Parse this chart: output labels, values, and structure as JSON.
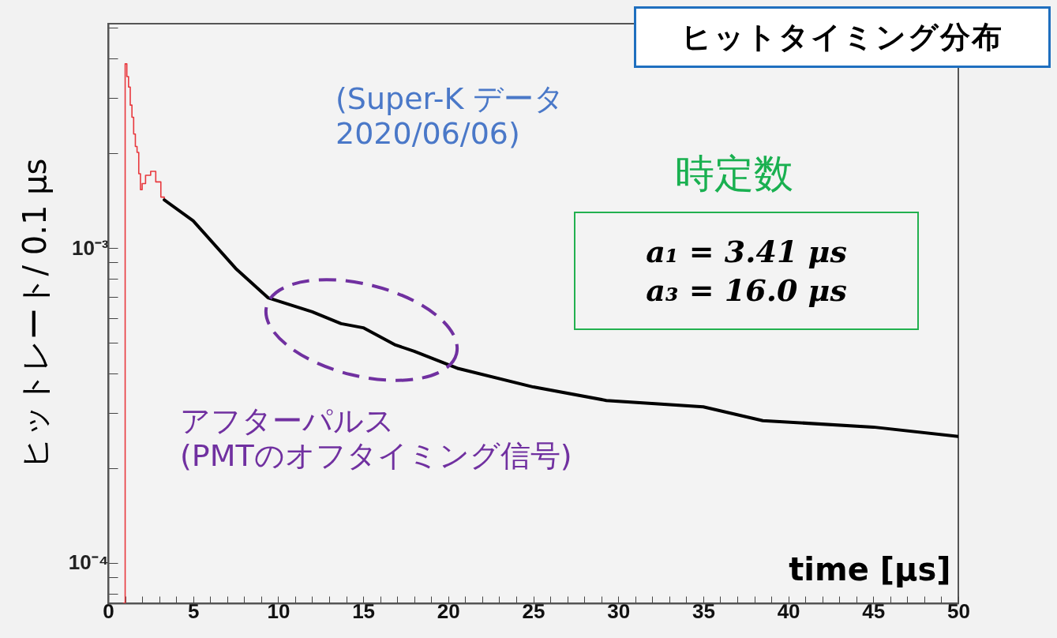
{
  "chart_data": {
    "type": "line",
    "title": "ヒットタイミング分布",
    "xlabel": "time [μs]",
    "ylabel": "ヒットレート/ 0.1 μs",
    "annotations": [
      "(Super-K データ\n2020/06/06)",
      "時定数",
      "a₁ = 3.41 μs",
      "a₃ = 16.0 μs",
      "アフターパルス\n(PMTのオフタイミング信号)"
    ],
    "log": true,
    "xlim": [
      0,
      50
    ],
    "xticks": [
      0,
      {
        "value": 1,
        "label": null
      },
      {
        "value": 2,
        "label": null
      },
      {
        "value": 3,
        "label": null
      },
      {
        "value": 4,
        "label": null
      },
      5,
      {
        "value": 6,
        "label": null
      },
      {
        "value": 7,
        "label": null
      },
      {
        "value": 8,
        "label": null
      },
      {
        "value": 9,
        "label": null
      },
      10,
      {
        "value": 11,
        "label": null
      },
      {
        "value": 12,
        "label": null
      },
      {
        "value": 13,
        "label": null
      },
      {
        "value": 14,
        "label": null
      },
      15,
      {
        "value": 16,
        "label": null
      },
      {
        "value": 17,
        "label": null
      },
      {
        "value": 18,
        "label": null
      },
      {
        "value": 19,
        "label": null
      },
      20,
      {
        "value": 21,
        "label": null
      },
      {
        "value": 22,
        "label": null
      },
      {
        "value": 23,
        "label": null
      },
      {
        "value": 24,
        "label": null
      },
      25,
      {
        "value": 26,
        "label": null
      },
      {
        "value": 27,
        "label": null
      },
      {
        "value": 28,
        "label": null
      },
      {
        "value": 29,
        "label": null
      },
      30,
      {
        "value": 31,
        "label": null
      },
      {
        "value": 32,
        "label": null
      },
      {
        "value": 33,
        "label": null
      },
      {
        "value": 34,
        "label": null
      },
      35,
      {
        "value": 36,
        "label": null
      },
      {
        "value": 37,
        "label": null
      },
      {
        "value": 38,
        "label": null
      },
      {
        "value": 39,
        "label": null
      },
      40,
      {
        "value": 41,
        "label": null
      },
      {
        "value": 42,
        "label": null
      },
      {
        "value": 43,
        "label": null
      },
      {
        "value": 44,
        "label": null
      },
      45,
      {
        "value": 46,
        "label": null
      },
      {
        "value": 47,
        "label": null
      },
      {
        "value": 48,
        "label": null
      },
      {
        "value": 49,
        "label": null
      },
      50
    ],
    "ylim": [
      7.45e-05,
      0.00515
    ],
    "yticks": [
      {
        "value": 8e-05,
        "label": null
      },
      {
        "value": 9e-05,
        "label": null
      },
      {
        "value": 0.0001,
        "label": "10⁻⁴"
      },
      {
        "value": 0.0002,
        "label": null
      },
      {
        "value": 0.0003,
        "label": null
      },
      {
        "value": 0.0004,
        "label": null
      },
      {
        "value": 0.0005,
        "label": null
      },
      {
        "value": 0.0006,
        "label": null
      },
      {
        "value": 0.0007,
        "label": null
      },
      {
        "value": 0.0008,
        "label": null
      },
      {
        "value": 0.0009,
        "label": null
      },
      {
        "value": 0.001,
        "label": "10⁻³"
      },
      {
        "value": 0.002,
        "label": null
      },
      {
        "value": 0.003,
        "label": null
      },
      {
        "value": 0.004,
        "label": null
      },
      {
        "value": 0.005,
        "label": null
      }
    ],
    "series": [
      {
        "type": "step",
        "color": "#e8383d",
        "x": [
          0.9,
          1.0,
          1.1,
          1.2,
          1.3,
          1.4,
          1.5,
          1.6,
          1.7,
          1.8,
          1.9,
          2.0,
          2.2,
          2.5,
          2.8,
          3.1,
          3.3
        ],
        "values": [
          7.45e-05,
          0.00384,
          0.0035,
          0.00324,
          0.00284,
          0.0026,
          0.0023,
          0.0021,
          0.00201,
          0.00172,
          0.00153,
          0.0016,
          0.0017,
          0.00175,
          0.00162,
          0.00145,
          0.00142
        ]
      },
      {
        "type": "line",
        "color": "#000000",
        "x": [
          3.3,
          5,
          7.5,
          9.4,
          12,
          13.7,
          15,
          16.9,
          18,
          20.6,
          25,
          29.3,
          35,
          38.5,
          45,
          50
        ],
        "values": [
          0.00142,
          0.00122,
          0.000861,
          0.000695,
          0.000627,
          0.000575,
          0.000558,
          0.000492,
          0.00047,
          0.000414,
          0.000362,
          0.000328,
          0.000313,
          0.000283,
          0.00027,
          0.000252
        ]
      }
    ]
  }
}
